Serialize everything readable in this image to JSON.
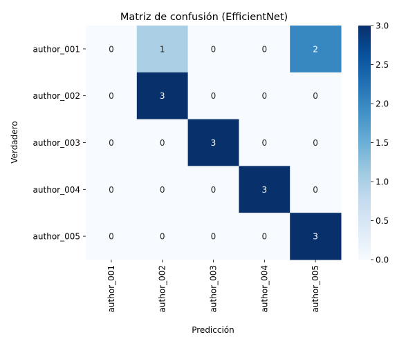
{
  "chart_data": {
    "type": "heatmap",
    "title": "Matriz de confusión (EfficientNet)",
    "xlabel": "Predicción",
    "ylabel": "Verdadero",
    "x_categories": [
      "author_001",
      "author_002",
      "author_003",
      "author_004",
      "author_005"
    ],
    "y_categories": [
      "author_001",
      "author_002",
      "author_003",
      "author_004",
      "author_005"
    ],
    "values": [
      [
        0,
        1,
        0,
        0,
        2
      ],
      [
        0,
        3,
        0,
        0,
        0
      ],
      [
        0,
        0,
        3,
        0,
        0
      ],
      [
        0,
        0,
        0,
        3,
        0
      ],
      [
        0,
        0,
        0,
        0,
        3
      ]
    ],
    "colormap": "Blues",
    "vmin": 0,
    "vmax": 3,
    "colorbar_ticks": [
      "0.0",
      "0.5",
      "1.0",
      "1.5",
      "2.0",
      "2.5",
      "3.0"
    ],
    "grid": false
  }
}
